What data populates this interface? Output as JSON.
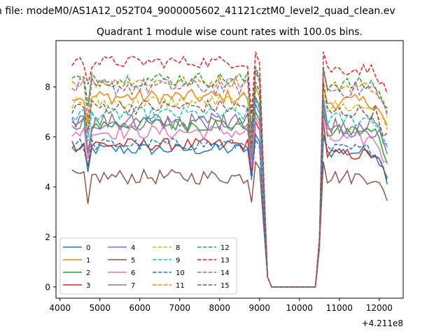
{
  "figure": {
    "suptitle": "n file: modeM0/AS1A12_052T04_9000005602_41121cztM0_level2_quad_clean.ev"
  },
  "chart_data": {
    "type": "line",
    "title": "Quadrant 1 module wise count rates with 100.0s bins.",
    "xlabel": "",
    "ylabel": "",
    "x_offset_label": "+4.211e8",
    "xlim": [
      3900,
      12600
    ],
    "ylim": [
      -0.45,
      9.85
    ],
    "x_ticks": [
      4000,
      5000,
      6000,
      7000,
      8000,
      9000,
      10000,
      11000,
      12000
    ],
    "x_tick_labels": [
      "4000",
      "5000",
      "6000",
      "7000",
      "8000",
      "9000",
      "10000",
      "11000",
      "12000"
    ],
    "y_ticks": [
      0,
      2,
      4,
      6,
      8
    ],
    "y_tick_labels": [
      "0",
      "2",
      "4",
      "6",
      "8"
    ],
    "grid": false,
    "legend_position": "lower-left",
    "series_colors": [
      "#1f77b4",
      "#ff7f0e",
      "#2ca02c",
      "#d62728",
      "#9467bd",
      "#8c564b",
      "#e377c2",
      "#7f7f7f",
      "#bcbd22",
      "#17becf",
      "#1f77b4",
      "#ff7f0e",
      "#2ca02c",
      "#d62728",
      "#9467bd",
      "#8c564b"
    ],
    "series": [
      {
        "name": "0",
        "dashed": false,
        "base": 5.5,
        "jitter": 0.25,
        "second_base": 5.4,
        "spike": 6.1
      },
      {
        "name": "1",
        "dashed": false,
        "base": 7.6,
        "jitter": 0.3,
        "second_base": 7.4,
        "spike": 8.0
      },
      {
        "name": "2",
        "dashed": false,
        "base": 6.5,
        "jitter": 0.3,
        "second_base": 6.2,
        "spike": 7.0
      },
      {
        "name": "3",
        "dashed": false,
        "base": 5.7,
        "jitter": 0.25,
        "second_base": 5.3,
        "spike": 6.6
      },
      {
        "name": "4",
        "dashed": false,
        "base": 6.6,
        "jitter": 0.35,
        "second_base": 6.3,
        "spike": 7.3
      },
      {
        "name": "5",
        "dashed": false,
        "base": 4.4,
        "jitter": 0.3,
        "second_base": 4.4,
        "spike": 5.0
      },
      {
        "name": "6",
        "dashed": false,
        "base": 6.2,
        "jitter": 0.3,
        "second_base": 5.9,
        "spike": 6.8
      },
      {
        "name": "7",
        "dashed": false,
        "base": 6.6,
        "jitter": 0.35,
        "second_base": 6.5,
        "spike": 7.6
      },
      {
        "name": "8",
        "dashed": true,
        "base": 7.4,
        "jitter": 0.3,
        "second_base": 7.2,
        "spike": 8.0
      },
      {
        "name": "9",
        "dashed": true,
        "base": 6.9,
        "jitter": 0.3,
        "second_base": 6.7,
        "spike": 7.5
      },
      {
        "name": "10",
        "dashed": true,
        "base": 5.7,
        "jitter": 0.25,
        "second_base": 5.5,
        "spike": 5.9
      },
      {
        "name": "11",
        "dashed": true,
        "base": 8.2,
        "jitter": 0.25,
        "second_base": 8.0,
        "spike": 8.6
      },
      {
        "name": "12",
        "dashed": true,
        "base": 8.3,
        "jitter": 0.3,
        "second_base": 8.1,
        "spike": 8.8
      },
      {
        "name": "13",
        "dashed": true,
        "base": 9.0,
        "jitter": 0.25,
        "second_base": 8.7,
        "spike": 9.4
      },
      {
        "name": "14",
        "dashed": true,
        "base": 8.0,
        "jitter": 0.35,
        "second_base": 7.9,
        "spike": 8.7
      },
      {
        "name": "15",
        "dashed": true,
        "base": 7.2,
        "jitter": 0.3,
        "second_base": 7.0,
        "spike": 8.2
      }
    ],
    "time_grid": {
      "first_start": 4300,
      "first_end": 8700,
      "step": 100,
      "gap_zero_start": 9200,
      "gap_zero_end": 10400,
      "second_start": 10600,
      "second_end": 12200
    }
  }
}
